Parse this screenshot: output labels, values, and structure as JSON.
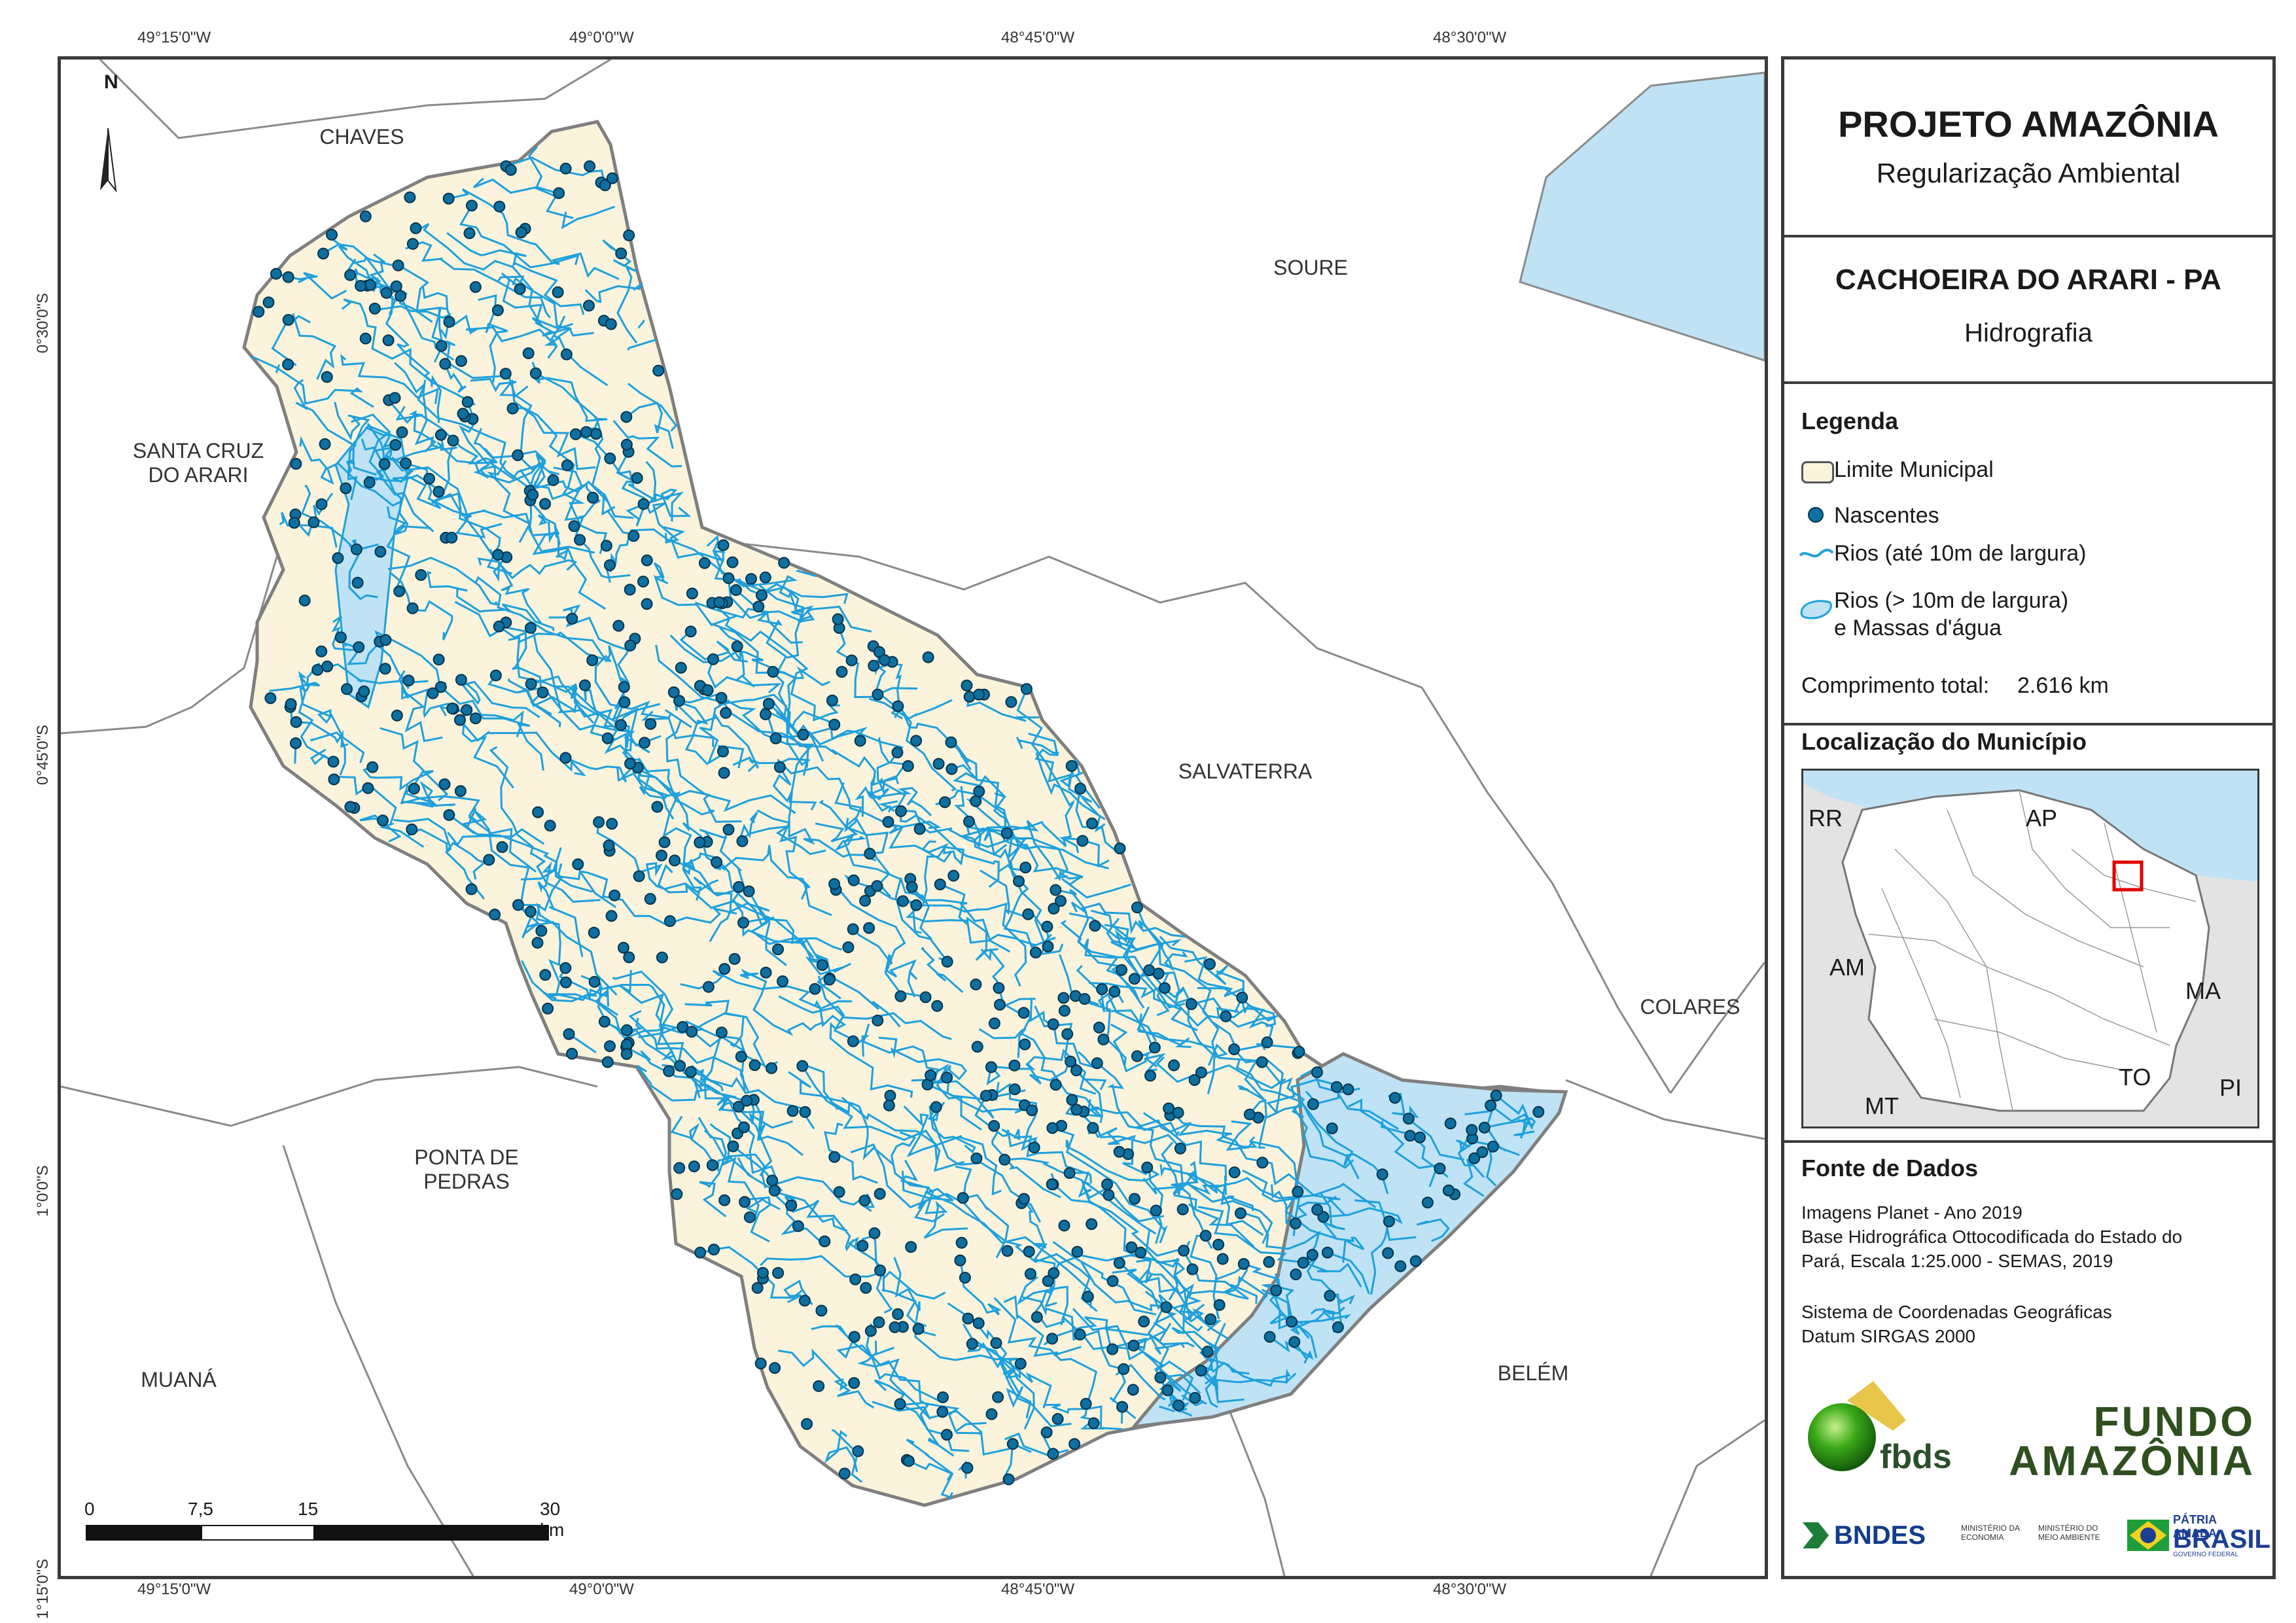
{
  "grid": {
    "top_lon": [
      "49°15'0\"W",
      "49°0'0\"W",
      "48°45'0\"W",
      "48°30'0\"W"
    ],
    "bottom_lon": [
      "49°15'0\"W",
      "49°0'0\"W",
      "48°45'0\"W",
      "48°30'0\"W"
    ],
    "lat": [
      "0°30'0\"S",
      "0°45'0\"S",
      "1°0'0\"S",
      "1°15'0\"S"
    ]
  },
  "north_arrow": {
    "label": "N"
  },
  "municipalities": {
    "chaves": "CHAVES",
    "soure": "SOURE",
    "santa_cruz": "SANTA CRUZ\nDO ARARI",
    "salvaterra": "SALVATERRA",
    "colares": "COLARES",
    "ponta_pedras": "PONTA DE\nPEDRAS",
    "muana": "MUANÁ",
    "belem": "BELÉM"
  },
  "scale_bar": {
    "labels": [
      "0",
      "7,5",
      "15",
      "30 km"
    ]
  },
  "panel": {
    "project_title": "PROJETO AMAZÔNIA",
    "project_subtitle": "Regularização Ambiental",
    "map_title": "CACHOEIRA DO ARARI - PA",
    "map_theme": "Hidrografia",
    "legend_title": "Legenda",
    "legend": [
      {
        "label": "Limite Municipal",
        "symbol": "outline"
      },
      {
        "label": "Nascentes",
        "symbol": "dot"
      },
      {
        "label": "Rios (até 10m de largura)",
        "symbol": "line"
      },
      {
        "label": "Rios (> 10m de largura)\ne Massas d'água",
        "symbol": "polygon"
      }
    ],
    "total_length_label": "Comprimento total:",
    "total_length_value": "2.616 km",
    "location_title": "Localização do Município",
    "states": [
      "RR",
      "AP",
      "AM",
      "MA",
      "TO",
      "MT",
      "PI"
    ],
    "sources_title": "Fonte de Dados",
    "sources_1": "Imagens Planet - Ano 2019\nBase Hidrográfica Ottocodificada do Estado do\nPará, Escala 1:25.000 - SEMAS, 2019",
    "sources_2": "Sistema de Coordenadas Geográficas\nDatum SIRGAS 2000",
    "logos": {
      "fbds": "fbds",
      "fundo_1": "FUNDO",
      "fundo_2": "AMAZÔNIA",
      "bndes": "BNDES",
      "min_economia": "MINISTÉRIO DA\nECONOMIA",
      "min_ambiente": "MINISTÉRIO DO\nMEIO AMBIENTE",
      "patria": "PÁTRIA AMADA",
      "brasil": "BRASIL",
      "gov": "GOVERNO FEDERAL"
    }
  },
  "colors": {
    "municipio_fill": "#fbf3dc",
    "water": "#bfe3f5",
    "river": "#1ea0dc",
    "spring": "#0f6f9f",
    "location_highlight": "#e00000"
  }
}
